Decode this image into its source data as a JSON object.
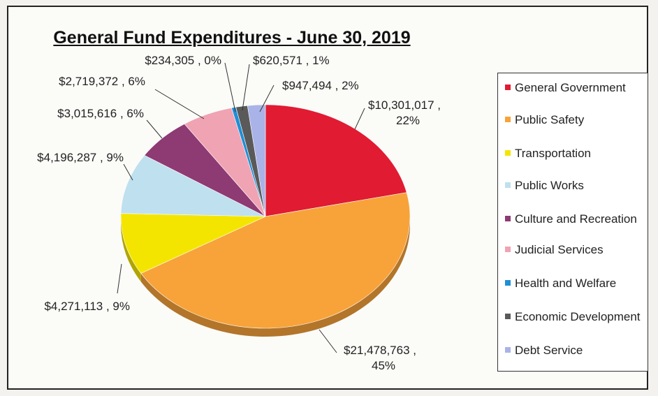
{
  "chart_data": {
    "type": "pie",
    "title": "General Fund Expenditures - June 30, 2019",
    "legend_position": "right",
    "slices": [
      {
        "name": "General Government",
        "value": 10301017,
        "label": "$10,301,017 , 22%",
        "color": "#e11b32"
      },
      {
        "name": "Public Safety",
        "value": 21478763,
        "label": "$21,478,763 , 45%",
        "color": "#f7a33a"
      },
      {
        "name": "Transportation",
        "value": 4271113,
        "label": "$4,271,113 , 9%",
        "color": "#f4e500"
      },
      {
        "name": "Public Works",
        "value": 4196287,
        "label": "$4,196,287 , 9%",
        "color": "#bfe0ee"
      },
      {
        "name": "Culture and Recreation",
        "value": 3015616,
        "label": "$3,015,616 , 6%",
        "color": "#8e3a73"
      },
      {
        "name": "Judicial Services",
        "value": 2719372,
        "label": "$2,719,372 , 6%",
        "color": "#f0a3b3"
      },
      {
        "name": "Health and Welfare",
        "value": 234305,
        "label": "$234,305 , 0%",
        "color": "#1f8fd6"
      },
      {
        "name": "Economic Development",
        "value": 620571,
        "label": "$620,571 , 1%",
        "color": "#5a5a5a"
      },
      {
        "name": "Debt Service",
        "value": 947494,
        "label": "$947,494 , 2%",
        "color": "#aab3e8"
      }
    ]
  }
}
